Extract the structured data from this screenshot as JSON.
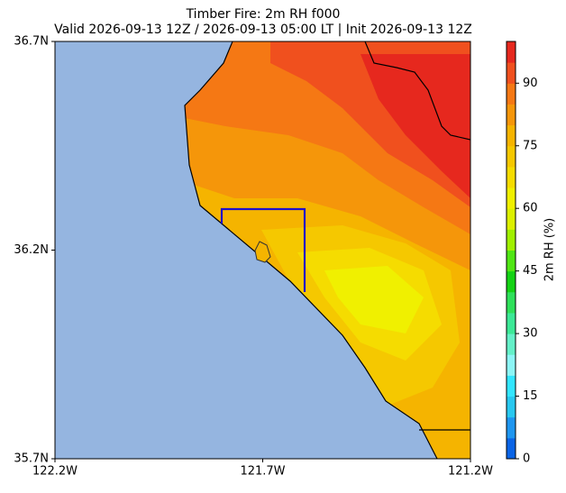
{
  "title": "Timber Fire: 2m RH f000",
  "subtitle": "Valid 2026-09-13 12Z / 2026-09-13 05:00 LT | Init 2026-09-13 12Z",
  "map": {
    "xlim": [
      -122.2,
      -121.2
    ],
    "ylim": [
      35.7,
      36.7
    ],
    "xticks": [
      {
        "value": -122.2,
        "label": "122.2W"
      },
      {
        "value": -121.7,
        "label": "121.7W"
      },
      {
        "value": -121.2,
        "label": "121.2W"
      }
    ],
    "yticks": [
      {
        "value": 35.7,
        "label": "35.7N"
      },
      {
        "value": 36.2,
        "label": "36.2N"
      },
      {
        "value": 36.7,
        "label": "36.7N"
      }
    ]
  },
  "colorbar": {
    "label": "2m RH (%)",
    "lim": [
      0,
      100
    ],
    "ticks": [
      0,
      15,
      30,
      45,
      60,
      75,
      90
    ],
    "colors": [
      "#0a64e6",
      "#1e96f0",
      "#28c8f0",
      "#32e6ff",
      "#8cf5f5",
      "#64f0c8",
      "#3ce896",
      "#2ee05a",
      "#14d214",
      "#50e614",
      "#a0f000",
      "#dcf000",
      "#f0f000",
      "#f5dc00",
      "#f5c800",
      "#f5b400",
      "#f5960a",
      "#f57814",
      "#f0501e",
      "#e6281e"
    ]
  }
}
